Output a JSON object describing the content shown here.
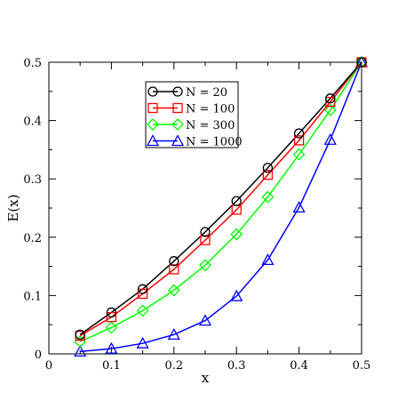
{
  "chart_data": {
    "type": "line",
    "title": "",
    "xlabel": "x",
    "ylabel": "E(x)",
    "xlim": [
      0,
      0.5
    ],
    "ylim": [
      0,
      0.5
    ],
    "xticks": [
      "0",
      "0.1",
      "0.2",
      "0.3",
      "0.4",
      "0.5"
    ],
    "yticks": [
      "0",
      "0.1",
      "0.2",
      "0.3",
      "0.4",
      "0.5"
    ],
    "x_tick_values": [
      0,
      0.1,
      0.2,
      0.3,
      0.4,
      0.5
    ],
    "y_tick_values": [
      0,
      0.1,
      0.2,
      0.3,
      0.4,
      0.5
    ],
    "grid": false,
    "legend_position": "top-center",
    "x": [
      0.05,
      0.1,
      0.15,
      0.2,
      0.25,
      0.3,
      0.35,
      0.4,
      0.45,
      0.5
    ],
    "series": [
      {
        "name": "N = 20",
        "color": "#000000",
        "marker": "circle",
        "values": [
          0.033,
          0.071,
          0.111,
          0.159,
          0.209,
          0.262,
          0.319,
          0.378,
          0.438,
          0.5
        ]
      },
      {
        "name": "N = 100",
        "color": "#ff0000",
        "marker": "square",
        "values": [
          0.031,
          0.063,
          0.103,
          0.145,
          0.195,
          0.247,
          0.307,
          0.366,
          0.432,
          0.5
        ]
      },
      {
        "name": "N = 300",
        "color": "#00ff00",
        "marker": "diamond",
        "values": [
          0.021,
          0.045,
          0.074,
          0.109,
          0.152,
          0.205,
          0.269,
          0.342,
          0.418,
          0.5
        ]
      },
      {
        "name": "N = 1000",
        "color": "#0000ff",
        "marker": "triangle",
        "values": [
          0.004,
          0.009,
          0.018,
          0.033,
          0.057,
          0.099,
          0.161,
          0.251,
          0.367,
          0.5
        ]
      }
    ]
  }
}
